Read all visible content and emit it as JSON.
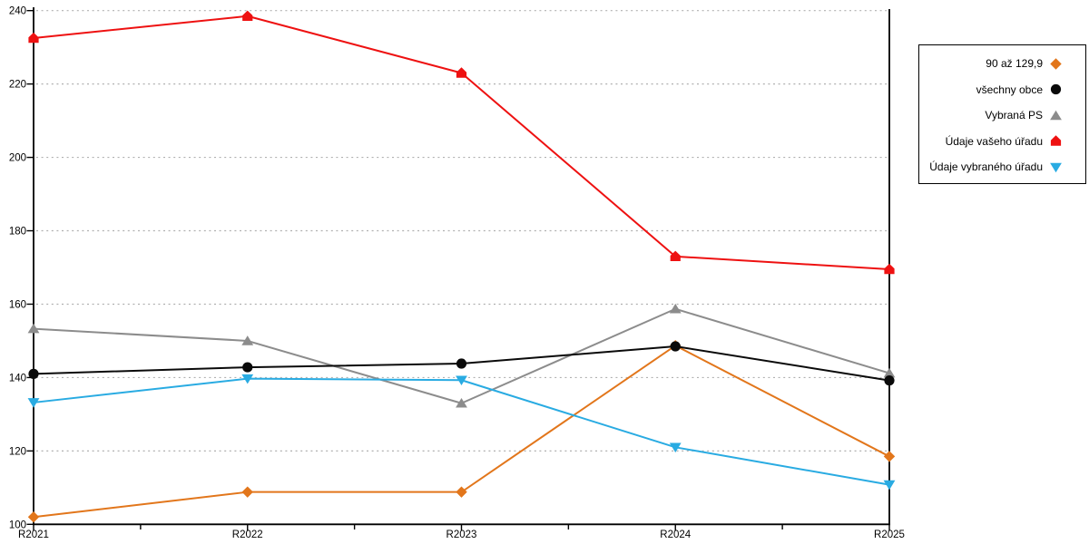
{
  "chart_data": {
    "type": "line",
    "categories": [
      "R2021",
      "R2022",
      "R2023",
      "R2024",
      "R2025"
    ],
    "series": [
      {
        "name": "90 až 129,9",
        "marker": "diamond",
        "color": "#E2761B",
        "values": [
          102,
          108.8,
          108.8,
          148.7,
          118.5
        ]
      },
      {
        "name": "všechny obce",
        "marker": "circle",
        "color": "#0a0a0a",
        "values": [
          141,
          142.8,
          143.8,
          148.5,
          139.2
        ]
      },
      {
        "name": "Vybraná PS",
        "marker": "triangle-up",
        "color": "#8c8c8c",
        "values": [
          153.3,
          150,
          133,
          158.7,
          141.2
        ]
      },
      {
        "name": "Údaje vašeho úřadu",
        "marker": "house",
        "color": "#ee1111",
        "values": [
          232.5,
          238.5,
          223,
          173,
          169.5
        ]
      },
      {
        "name": "Údaje vybraného úřadu",
        "marker": "triangle-down",
        "color": "#29abe2",
        "values": [
          133.2,
          139.7,
          139.3,
          121,
          110.8
        ]
      }
    ],
    "ylim": [
      100,
      240
    ],
    "yticks": [
      100,
      120,
      140,
      160,
      180,
      200,
      220,
      240
    ],
    "xlabel": "",
    "ylabel": "",
    "title": "",
    "grid": "horizontal-dotted",
    "legend_position": "top-right",
    "colors": {
      "axis": "#000000",
      "gridline": "#b0b0b0",
      "right_boundary": "#000000",
      "tick_label": "#000000"
    }
  }
}
